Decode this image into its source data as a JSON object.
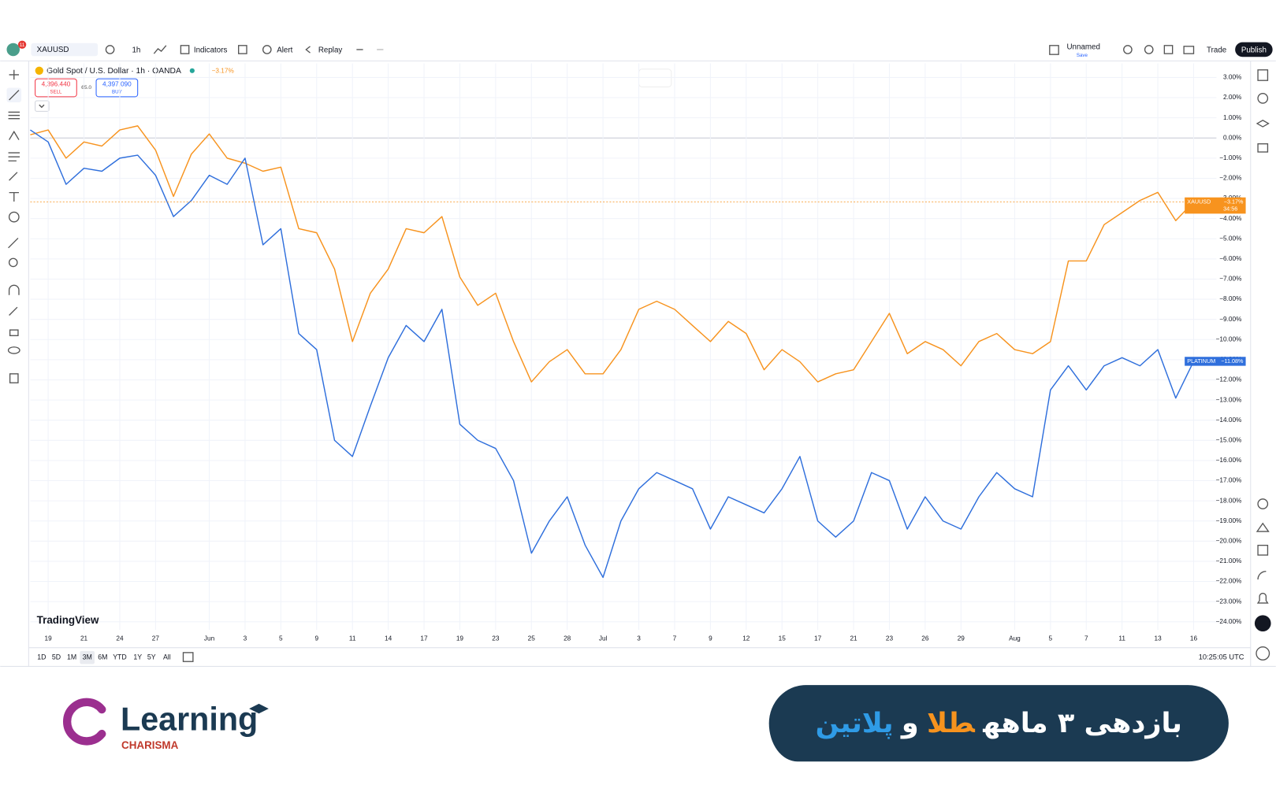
{
  "toolbar": {
    "badge": "11",
    "symbol": "XAUUSD",
    "interval": "1h",
    "indicators": "Indicators",
    "alert": "Alert",
    "replay": "Replay",
    "layout": "Unnamed",
    "save": "Save",
    "trade": "Trade",
    "publish": "Publish"
  },
  "legend": {
    "title": "Gold Spot / U.S. Dollar · 1h · OANDA",
    "change": "−3.17%",
    "sell_price": "4,396.440",
    "sell": "SELL",
    "spread": "65.0",
    "buy_price": "4,397.090",
    "buy": "BUY"
  },
  "watermark": "TradingView",
  "ranges": [
    "1D",
    "5D",
    "1M",
    "3M",
    "6M",
    "YTD",
    "1Y",
    "5Y",
    "All"
  ],
  "clock": "10:25:05 UTC",
  "chart_data": {
    "type": "line",
    "grid": true,
    "categories": [
      null,
      "19",
      null,
      "21",
      null,
      "24",
      null,
      "27",
      null,
      null,
      "Jun",
      null,
      "3",
      null,
      "5",
      null,
      "9",
      null,
      "11",
      null,
      "14",
      null,
      "17",
      null,
      "19",
      null,
      "23",
      null,
      "25",
      null,
      "28",
      null,
      "Jul",
      null,
      "3",
      null,
      "7",
      null,
      "9",
      null,
      "12",
      null,
      "15",
      null,
      "17",
      null,
      "21",
      null,
      "23",
      null,
      "26",
      null,
      "29",
      null,
      null,
      "Aug",
      null,
      "5",
      null,
      "7",
      null,
      "11",
      null,
      "13",
      null,
      "16"
    ],
    "series": [
      {
        "name": "XAUUSD",
        "color": "#f7931e",
        "tag": "−3.17%",
        "countdown": "34:56",
        "values": [
          0.16,
          0.4,
          -1.0,
          -0.2,
          -0.4,
          0.4,
          0.6,
          -0.6,
          -2.9,
          -0.8,
          0.2,
          -1.0,
          -1.25,
          -1.65,
          -1.45,
          -4.5,
          -4.7,
          -6.5,
          -10.1,
          -7.7,
          -6.5,
          -4.5,
          -4.7,
          -3.9,
          -6.9,
          -8.3,
          -7.7,
          -10.1,
          -12.1,
          -11.1,
          -10.5,
          -11.7,
          -11.7,
          -10.5,
          -8.5,
          -8.1,
          -8.5,
          -9.3,
          -10.1,
          -9.1,
          -9.7,
          -11.5,
          -10.5,
          -11.1,
          -12.1,
          -11.7,
          -11.5,
          -10.1,
          -8.7,
          -10.7,
          -10.1,
          -10.5,
          -11.3,
          -10.1,
          -9.7,
          -10.5,
          -10.7,
          -10.1,
          -6.1,
          -6.1,
          -4.3,
          -3.7,
          -3.1,
          -2.7,
          -4.1,
          -3.17
        ]
      },
      {
        "name": "PLATINUM",
        "color": "#2f6fdc",
        "tag": "−11.08%",
        "values": [
          0.4,
          -0.2,
          -2.3,
          -1.5,
          -1.65,
          -1.0,
          -0.85,
          -1.85,
          -3.9,
          -3.1,
          -1.85,
          -2.3,
          -1.0,
          -5.3,
          -4.5,
          -9.7,
          -10.5,
          -15.0,
          -15.8,
          -13.3,
          -10.9,
          -9.3,
          -10.1,
          -8.5,
          -14.2,
          -15.0,
          -15.4,
          -17.0,
          -20.6,
          -19.0,
          -17.8,
          -20.2,
          -21.8,
          -19.0,
          -17.4,
          -16.6,
          -17.0,
          -17.4,
          -19.4,
          -17.8,
          -18.2,
          -18.6,
          -17.4,
          -15.8,
          -19.0,
          -19.8,
          -19.0,
          -16.6,
          -17.0,
          -19.4,
          -17.8,
          -19.0,
          -19.4,
          -17.8,
          -16.6,
          -17.4,
          -17.8,
          -12.5,
          -11.3,
          -12.5,
          -11.3,
          -10.9,
          -11.3,
          -10.5,
          -12.9,
          -11.08
        ]
      }
    ],
    "ylim": [
      -24.4,
      3.7
    ],
    "yticks": [
      {
        "value": 3,
        "label": "3.00%"
      },
      {
        "value": 2,
        "label": "2.00%"
      },
      {
        "value": 1,
        "label": "1.00%"
      },
      {
        "value": 0,
        "label": "0.00%"
      },
      {
        "value": -1,
        "label": "−1.00%"
      },
      {
        "value": -2,
        "label": "−2.00%"
      },
      {
        "value": -3,
        "label": "−3.00%"
      },
      {
        "value": -4,
        "label": "−4.00%"
      },
      {
        "value": -5,
        "label": "−5.00%"
      },
      {
        "value": -6,
        "label": "−6.00%"
      },
      {
        "value": -7,
        "label": "−7.00%"
      },
      {
        "value": -8,
        "label": "−8.00%"
      },
      {
        "value": -9,
        "label": "−9.00%"
      },
      {
        "value": -10,
        "label": "−10.00%"
      },
      {
        "value": -11,
        "label": "−11.00%"
      },
      {
        "value": -12,
        "label": "−12.00%"
      },
      {
        "value": -13,
        "label": "−13.00%"
      },
      {
        "value": -14,
        "label": "−14.00%"
      },
      {
        "value": -15,
        "label": "−15.00%"
      },
      {
        "value": -16,
        "label": "−16.00%"
      },
      {
        "value": -17,
        "label": "−17.00%"
      },
      {
        "value": -18,
        "label": "−18.00%"
      },
      {
        "value": -19,
        "label": "−19.00%"
      },
      {
        "value": -20,
        "label": "−20.00%"
      },
      {
        "value": -21,
        "label": "−21.00%"
      },
      {
        "value": -22,
        "label": "−22.00%"
      },
      {
        "value": -23,
        "label": "−23.00%"
      },
      {
        "value": -24,
        "label": "−24.00%"
      }
    ]
  },
  "branding": {
    "logo": "Learning",
    "sub": "CHARISMA"
  },
  "banner": {
    "parts": [
      "بازدهی ۳ ماهه",
      "طلا",
      "و",
      "پلاتین"
    ]
  }
}
